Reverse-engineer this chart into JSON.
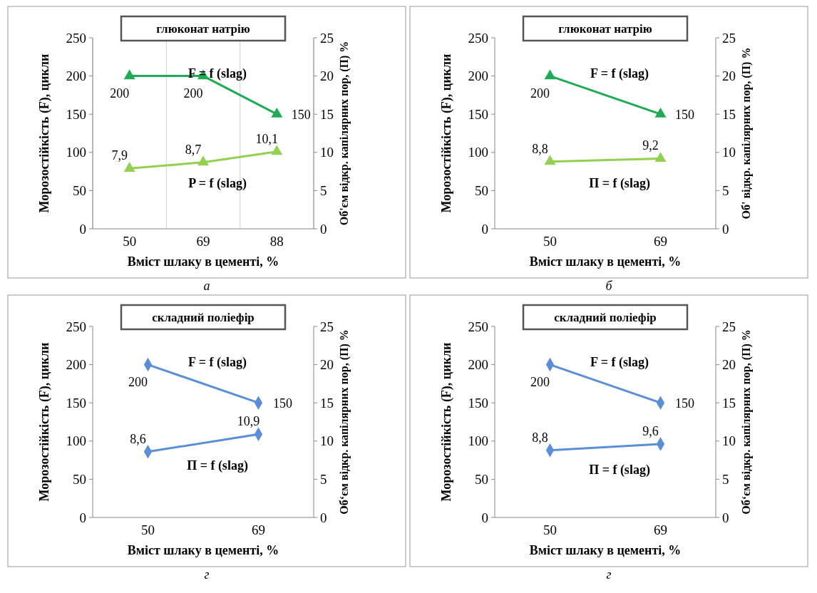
{
  "chart_data": [
    {
      "type": "line",
      "title": "глюконат натрію",
      "xlabel": "Вміст шлаку в цементі, %",
      "ylabel": "Морозостійкість (F), цикли",
      "y2label": "Об'єм відкр. капілярних пор, (П) %",
      "categories": [
        "50",
        "69",
        "88"
      ],
      "ylim": [
        0,
        250
      ],
      "yticks": [
        0,
        50,
        100,
        150,
        200,
        250
      ],
      "y2lim": [
        0,
        25
      ],
      "y2ticks": [
        0,
        5,
        10,
        15,
        20,
        25
      ],
      "grid": "x",
      "legend": false,
      "marker": "triangle",
      "annotations": [
        "а"
      ],
      "series": [
        {
          "name": "F = f (slag)",
          "color": "#1faa55",
          "values": [
            200,
            200,
            150
          ],
          "value_labels": [
            "200",
            "200",
            "150"
          ]
        },
        {
          "name": "P = f (slag)",
          "color": "#92d050",
          "axis": "y2",
          "values": [
            7.9,
            8.7,
            10.1
          ],
          "value_labels": [
            "7,9",
            "8,7",
            "10,1"
          ]
        }
      ]
    },
    {
      "type": "line",
      "title": "глюконат натрію",
      "xlabel": "Вміст шлаку в цементі, %",
      "ylabel": "Морозостійкість (F), цикли",
      "y2label": "Об' відкр. капілярних пор, (П) %",
      "categories": [
        "50",
        "69"
      ],
      "ylim": [
        0,
        250
      ],
      "yticks": [
        0,
        50,
        100,
        150,
        200,
        250
      ],
      "y2lim": [
        0,
        25
      ],
      "y2ticks": [
        0,
        5,
        10,
        15,
        20,
        25
      ],
      "legend": false,
      "marker": "triangle",
      "annotations": [
        "б"
      ],
      "series": [
        {
          "name": "F = f (slag)",
          "color": "#1faa55",
          "values": [
            200,
            150
          ],
          "value_labels": [
            "200",
            "150"
          ]
        },
        {
          "name": "П = f (slag)",
          "color": "#92d050",
          "axis": "y2",
          "values": [
            8.8,
            9.2
          ],
          "value_labels": [
            "8,8",
            "9,2"
          ]
        }
      ]
    },
    {
      "type": "line",
      "title": "складний поліефір",
      "xlabel": "Вміст шлаку в цементі, %",
      "ylabel": "Морозостійкість (F), цикли",
      "y2label": "Об‘єм відкр. капілярних пор, (П) %",
      "categories": [
        "50",
        "69"
      ],
      "ylim": [
        0,
        250
      ],
      "yticks": [
        0,
        50,
        100,
        150,
        200,
        250
      ],
      "y2lim": [
        0,
        25
      ],
      "y2ticks": [
        0,
        5,
        10,
        15,
        20,
        25
      ],
      "legend": false,
      "marker": "diamond",
      "annotations": [
        "г"
      ],
      "series": [
        {
          "name": "F = f (slag)",
          "color": "#5a8fd8",
          "values": [
            200,
            150
          ],
          "value_labels": [
            "200",
            "150"
          ]
        },
        {
          "name": "П = f (slag)",
          "color": "#5a8fd8",
          "axis": "y2",
          "values": [
            8.6,
            10.9
          ],
          "value_labels": [
            "8,6",
            "10,9"
          ]
        }
      ]
    },
    {
      "type": "line",
      "title": "складний поліефір",
      "xlabel": "Вміст шлаку в цементі, %",
      "ylabel": "Морозостійкість (F), цикли",
      "y2label": "Об‘єм відкр. капілярних пор, (П) %",
      "categories": [
        "50",
        "69"
      ],
      "ylim": [
        0,
        250
      ],
      "yticks": [
        0,
        50,
        100,
        150,
        200,
        250
      ],
      "y2lim": [
        0,
        25
      ],
      "y2ticks": [
        0,
        5,
        10,
        15,
        20,
        25
      ],
      "legend": false,
      "marker": "diamond",
      "annotations": [
        "г"
      ],
      "series": [
        {
          "name": "F = f (slag)",
          "color": "#5a8fd8",
          "values": [
            200,
            150
          ],
          "value_labels": [
            "200",
            "150"
          ]
        },
        {
          "name": "П = f (slag)",
          "color": "#5a8fd8",
          "axis": "y2",
          "values": [
            8.8,
            9.6
          ],
          "value_labels": [
            "8,8",
            "9,6"
          ]
        }
      ]
    }
  ]
}
